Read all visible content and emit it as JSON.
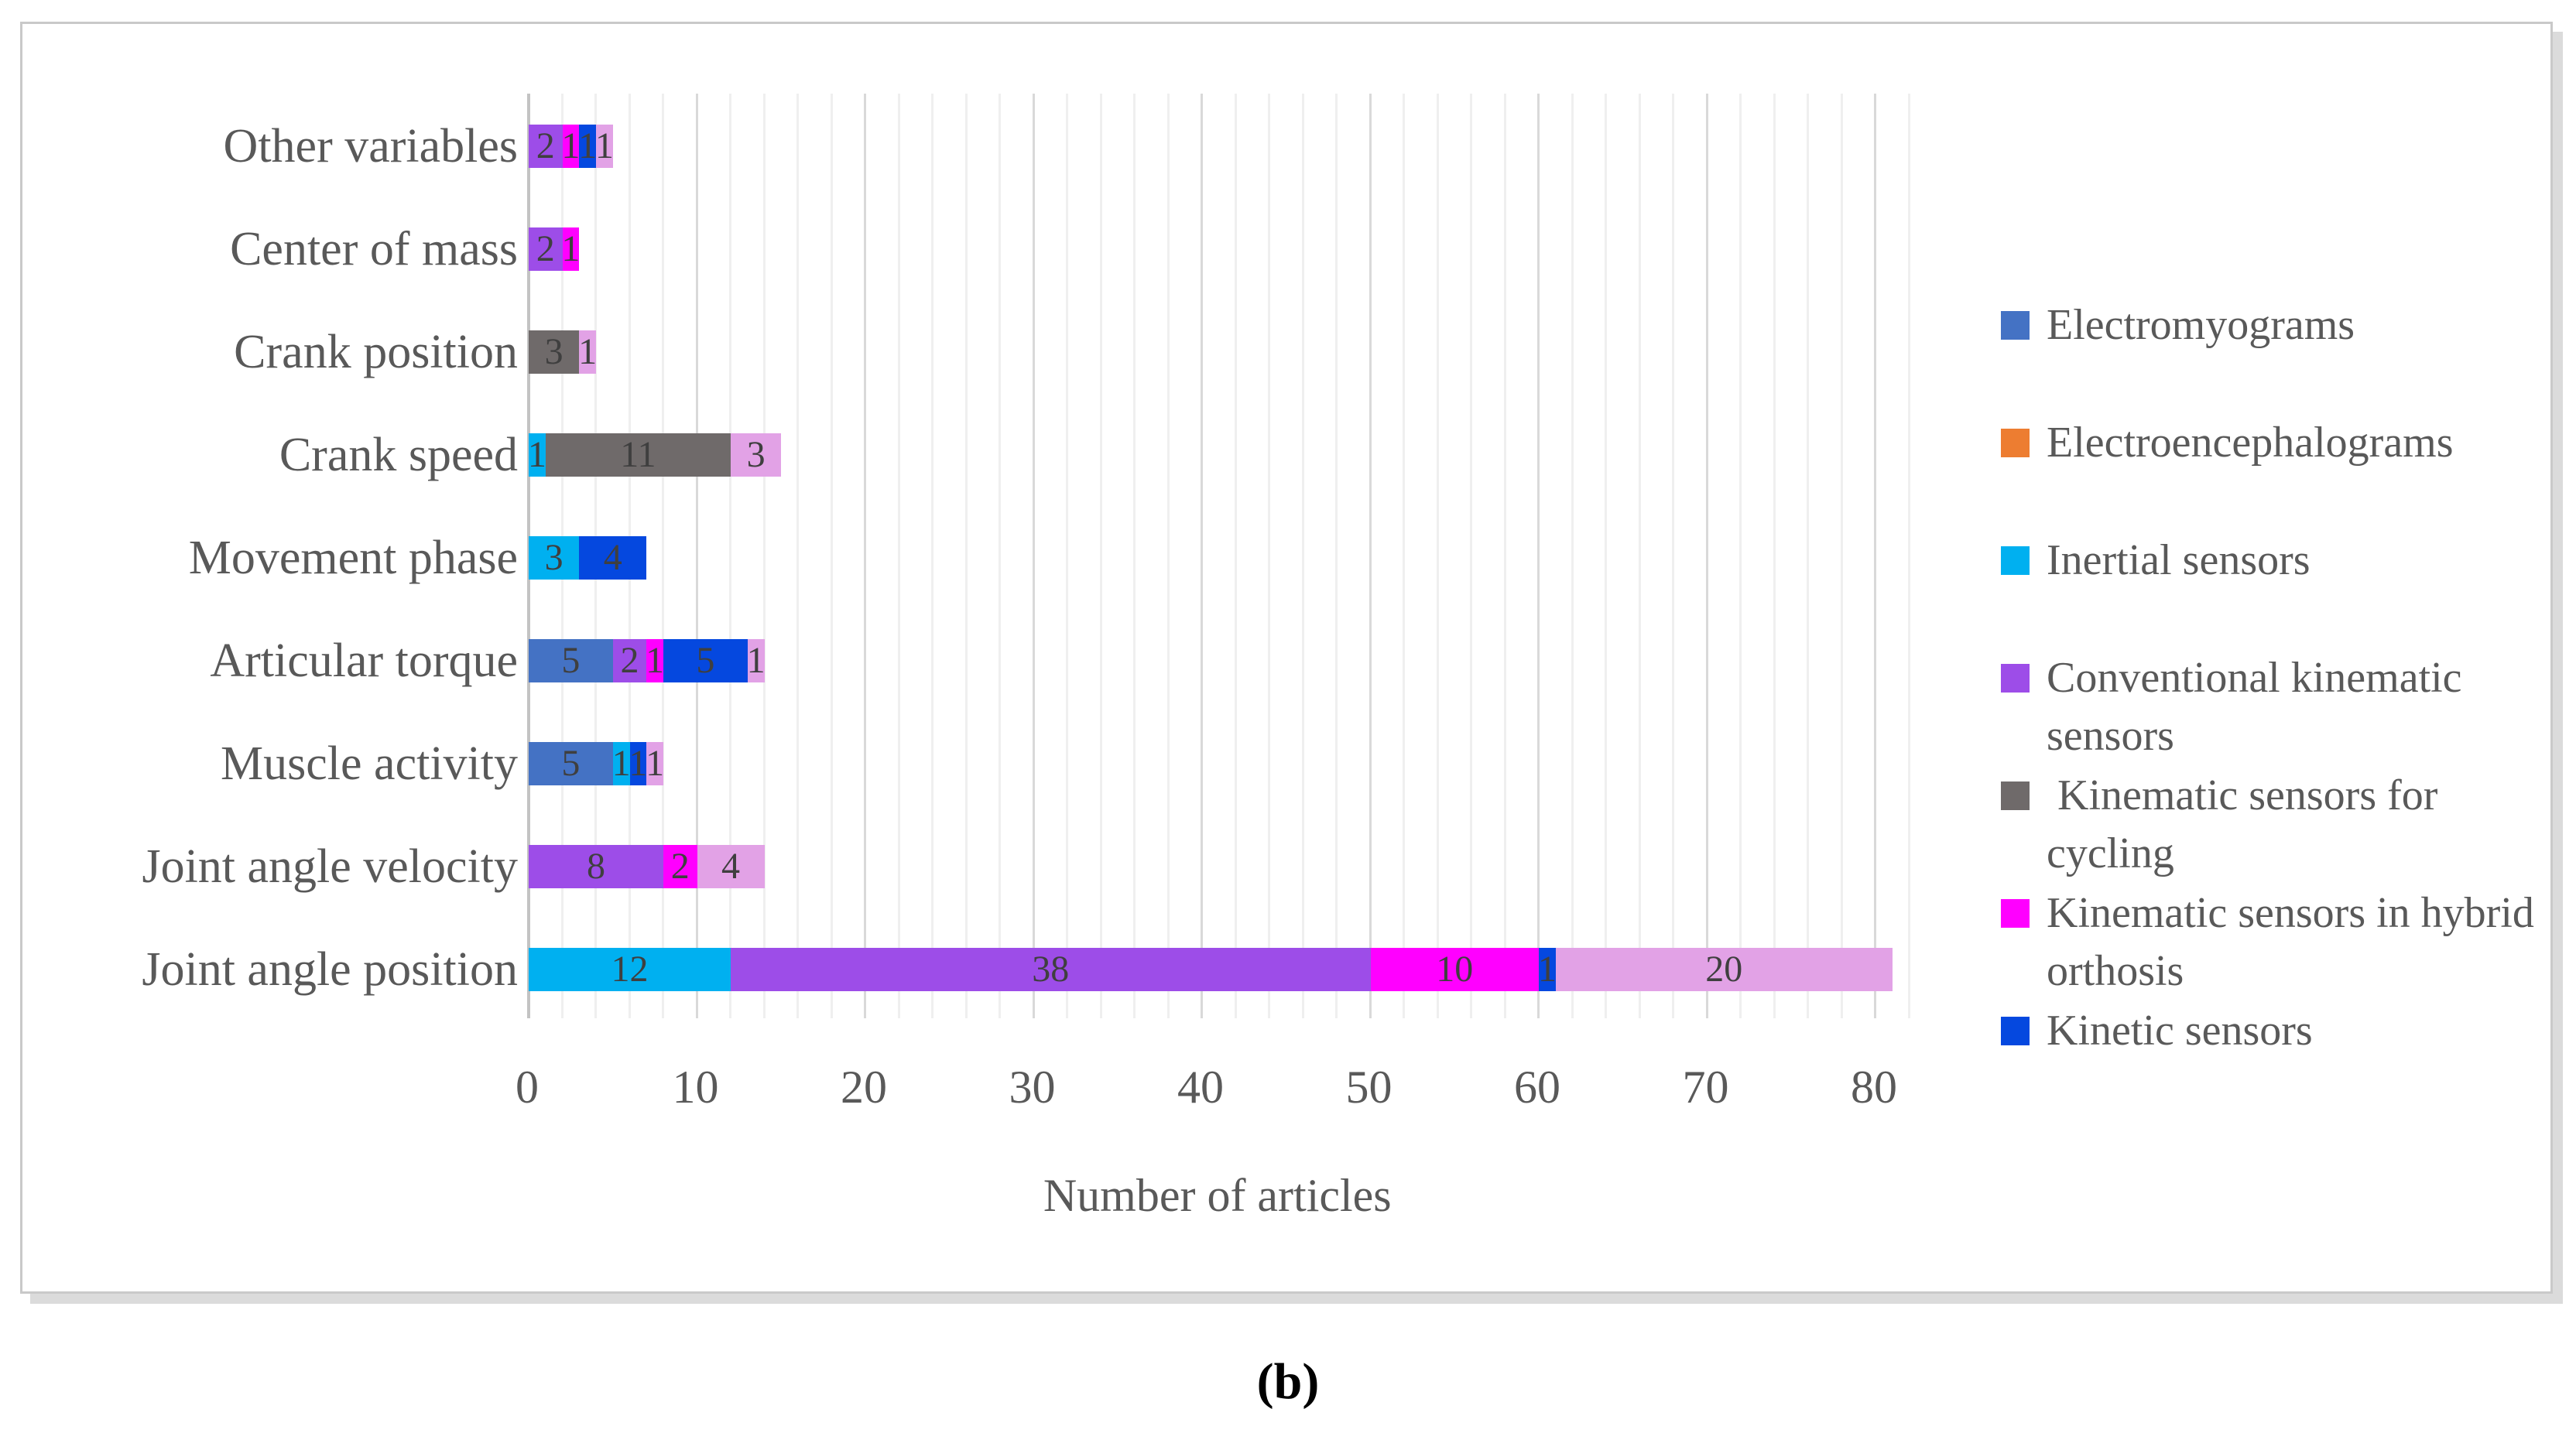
{
  "figure": {
    "caption": "(b)",
    "xlabel": "Number of articles"
  },
  "colors": {
    "Electromyograms": "#4472C4",
    "Electroencephalograms": "#ED7D31",
    "Inertial sensors": "#00B0F0",
    "Conventional kinematic sensors": "#9D4DE8",
    "Kinematic sensors for cycling": "#6F6A6A",
    "Kinematic sensors in hybrid orthosis": "#FF00FF",
    "Kinetic sensors": "#0548DF",
    "(unlabeled)": "#E2A2E6"
  },
  "legend": [
    {
      "label": "Electromyograms",
      "color": "#4472C4"
    },
    {
      "label": "Electroencephalograms",
      "color": "#ED7D31"
    },
    {
      "label": "Inertial sensors",
      "color": "#00B0F0"
    },
    {
      "label": "Conventional kinematic sensors",
      "color": "#9D4DE8"
    },
    {
      "label": " Kinematic sensors for cycling",
      "color": "#6F6A6A"
    },
    {
      "label": "Kinematic sensors in hybrid orthosis",
      "color": "#FF00FF"
    },
    {
      "label": "Kinetic sensors",
      "color": "#0548DF"
    }
  ],
  "chart_data": {
    "type": "bar",
    "orientation": "horizontal",
    "stacked": true,
    "title": "",
    "xlabel": "Number of articles",
    "ylabel": "",
    "xlim": [
      0,
      82
    ],
    "xticks": [
      0,
      10,
      20,
      30,
      40,
      50,
      60,
      70,
      80
    ],
    "minor_grid_step": 2,
    "grid": true,
    "legend_position": "right",
    "categories": [
      "Other variables",
      "Center of mass",
      "Crank position",
      "Crank speed",
      "Movement phase",
      "Articular torque",
      "Muscle activity",
      "Joint angle velocity",
      "Joint angle position"
    ],
    "series": [
      {
        "name": "Electromyograms",
        "values": [
          0,
          0,
          0,
          0,
          0,
          5,
          5,
          0,
          0
        ]
      },
      {
        "name": "Electroencephalograms",
        "values": [
          0,
          0,
          0,
          0,
          0,
          0,
          0,
          0,
          0
        ]
      },
      {
        "name": "Inertial sensors",
        "values": [
          0,
          0,
          0,
          1,
          3,
          0,
          1,
          0,
          12
        ]
      },
      {
        "name": "Conventional kinematic sensors",
        "values": [
          2,
          2,
          0,
          0,
          0,
          2,
          0,
          8,
          38
        ]
      },
      {
        "name": "Kinematic sensors for cycling",
        "values": [
          0,
          0,
          3,
          11,
          0,
          0,
          0,
          0,
          0
        ]
      },
      {
        "name": "Kinematic sensors in hybrid orthosis",
        "values": [
          1,
          1,
          0,
          0,
          0,
          1,
          0,
          2,
          10
        ]
      },
      {
        "name": "Kinetic sensors",
        "values": [
          1,
          0,
          0,
          0,
          4,
          5,
          1,
          0,
          1
        ]
      },
      {
        "name": "(unlabeled)",
        "values": [
          1,
          0,
          1,
          3,
          0,
          1,
          1,
          4,
          20
        ]
      }
    ]
  }
}
